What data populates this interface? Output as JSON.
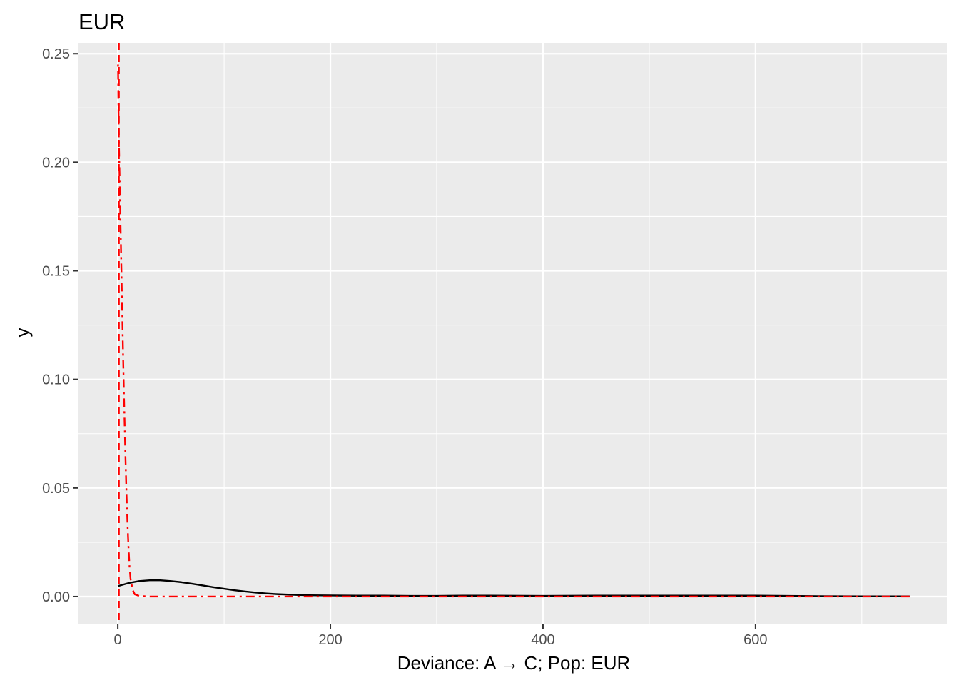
{
  "chart_data": {
    "type": "line",
    "title": "EUR",
    "xlabel": "Deviance: A → C; Pop: EUR",
    "ylabel": "y",
    "xlim": [
      -37,
      780
    ],
    "ylim": [
      -0.0125,
      0.255
    ],
    "x_ticks": [
      0,
      200,
      400,
      600
    ],
    "x_tick_labels": [
      "0",
      "200",
      "400",
      "600"
    ],
    "y_ticks": [
      0.0,
      0.05,
      0.1,
      0.15,
      0.2,
      0.25
    ],
    "y_tick_labels": [
      "0.00",
      "0.05",
      "0.10",
      "0.15",
      "0.20",
      "0.25"
    ],
    "grid": true,
    "colors": {
      "panel": "#ebebeb",
      "grid": "#ffffff",
      "density": "#000000",
      "reference": "#ff0000"
    },
    "series": [
      {
        "style": "solid",
        "color": "#000000",
        "x": [
          0,
          10,
          20,
          30,
          40,
          50,
          60,
          70,
          80,
          90,
          100,
          110,
          120,
          130,
          140,
          150,
          160,
          170,
          180,
          200,
          225,
          250,
          275,
          300,
          325,
          350,
          400,
          450,
          500,
          550,
          600,
          650,
          700,
          745
        ],
        "y": [
          0.0048,
          0.0062,
          0.0071,
          0.0075,
          0.0075,
          0.0071,
          0.0066,
          0.0059,
          0.0051,
          0.0043,
          0.0036,
          0.0029,
          0.0023,
          0.0018,
          0.0014,
          0.0011,
          0.0009,
          0.0007,
          0.0006,
          0.0005,
          0.0004,
          0.0004,
          0.0003,
          0.0003,
          0.0004,
          0.0004,
          0.0003,
          0.0004,
          0.0004,
          0.0004,
          0.0004,
          0.0002,
          0.0001,
          0.0001
        ]
      },
      {
        "style": "dotdash",
        "color": "#ff0000",
        "x": [
          0.2,
          0.5,
          1,
          2,
          3,
          4,
          5,
          6,
          7,
          8,
          9,
          10,
          11,
          12,
          14,
          16,
          20,
          30,
          50,
          100,
          200,
          400,
          600,
          745
        ],
        "y": [
          0.245,
          0.23,
          0.21,
          0.185,
          0.16,
          0.135,
          0.11,
          0.088,
          0.068,
          0.05,
          0.035,
          0.023,
          0.014,
          0.008,
          0.003,
          0.001,
          0.0003,
          0.0,
          0.0,
          0.0,
          0.0,
          0.0,
          0.0,
          0.0
        ]
      },
      {
        "style": "dashed",
        "color": "#ff0000",
        "vline_x": 1
      }
    ]
  }
}
